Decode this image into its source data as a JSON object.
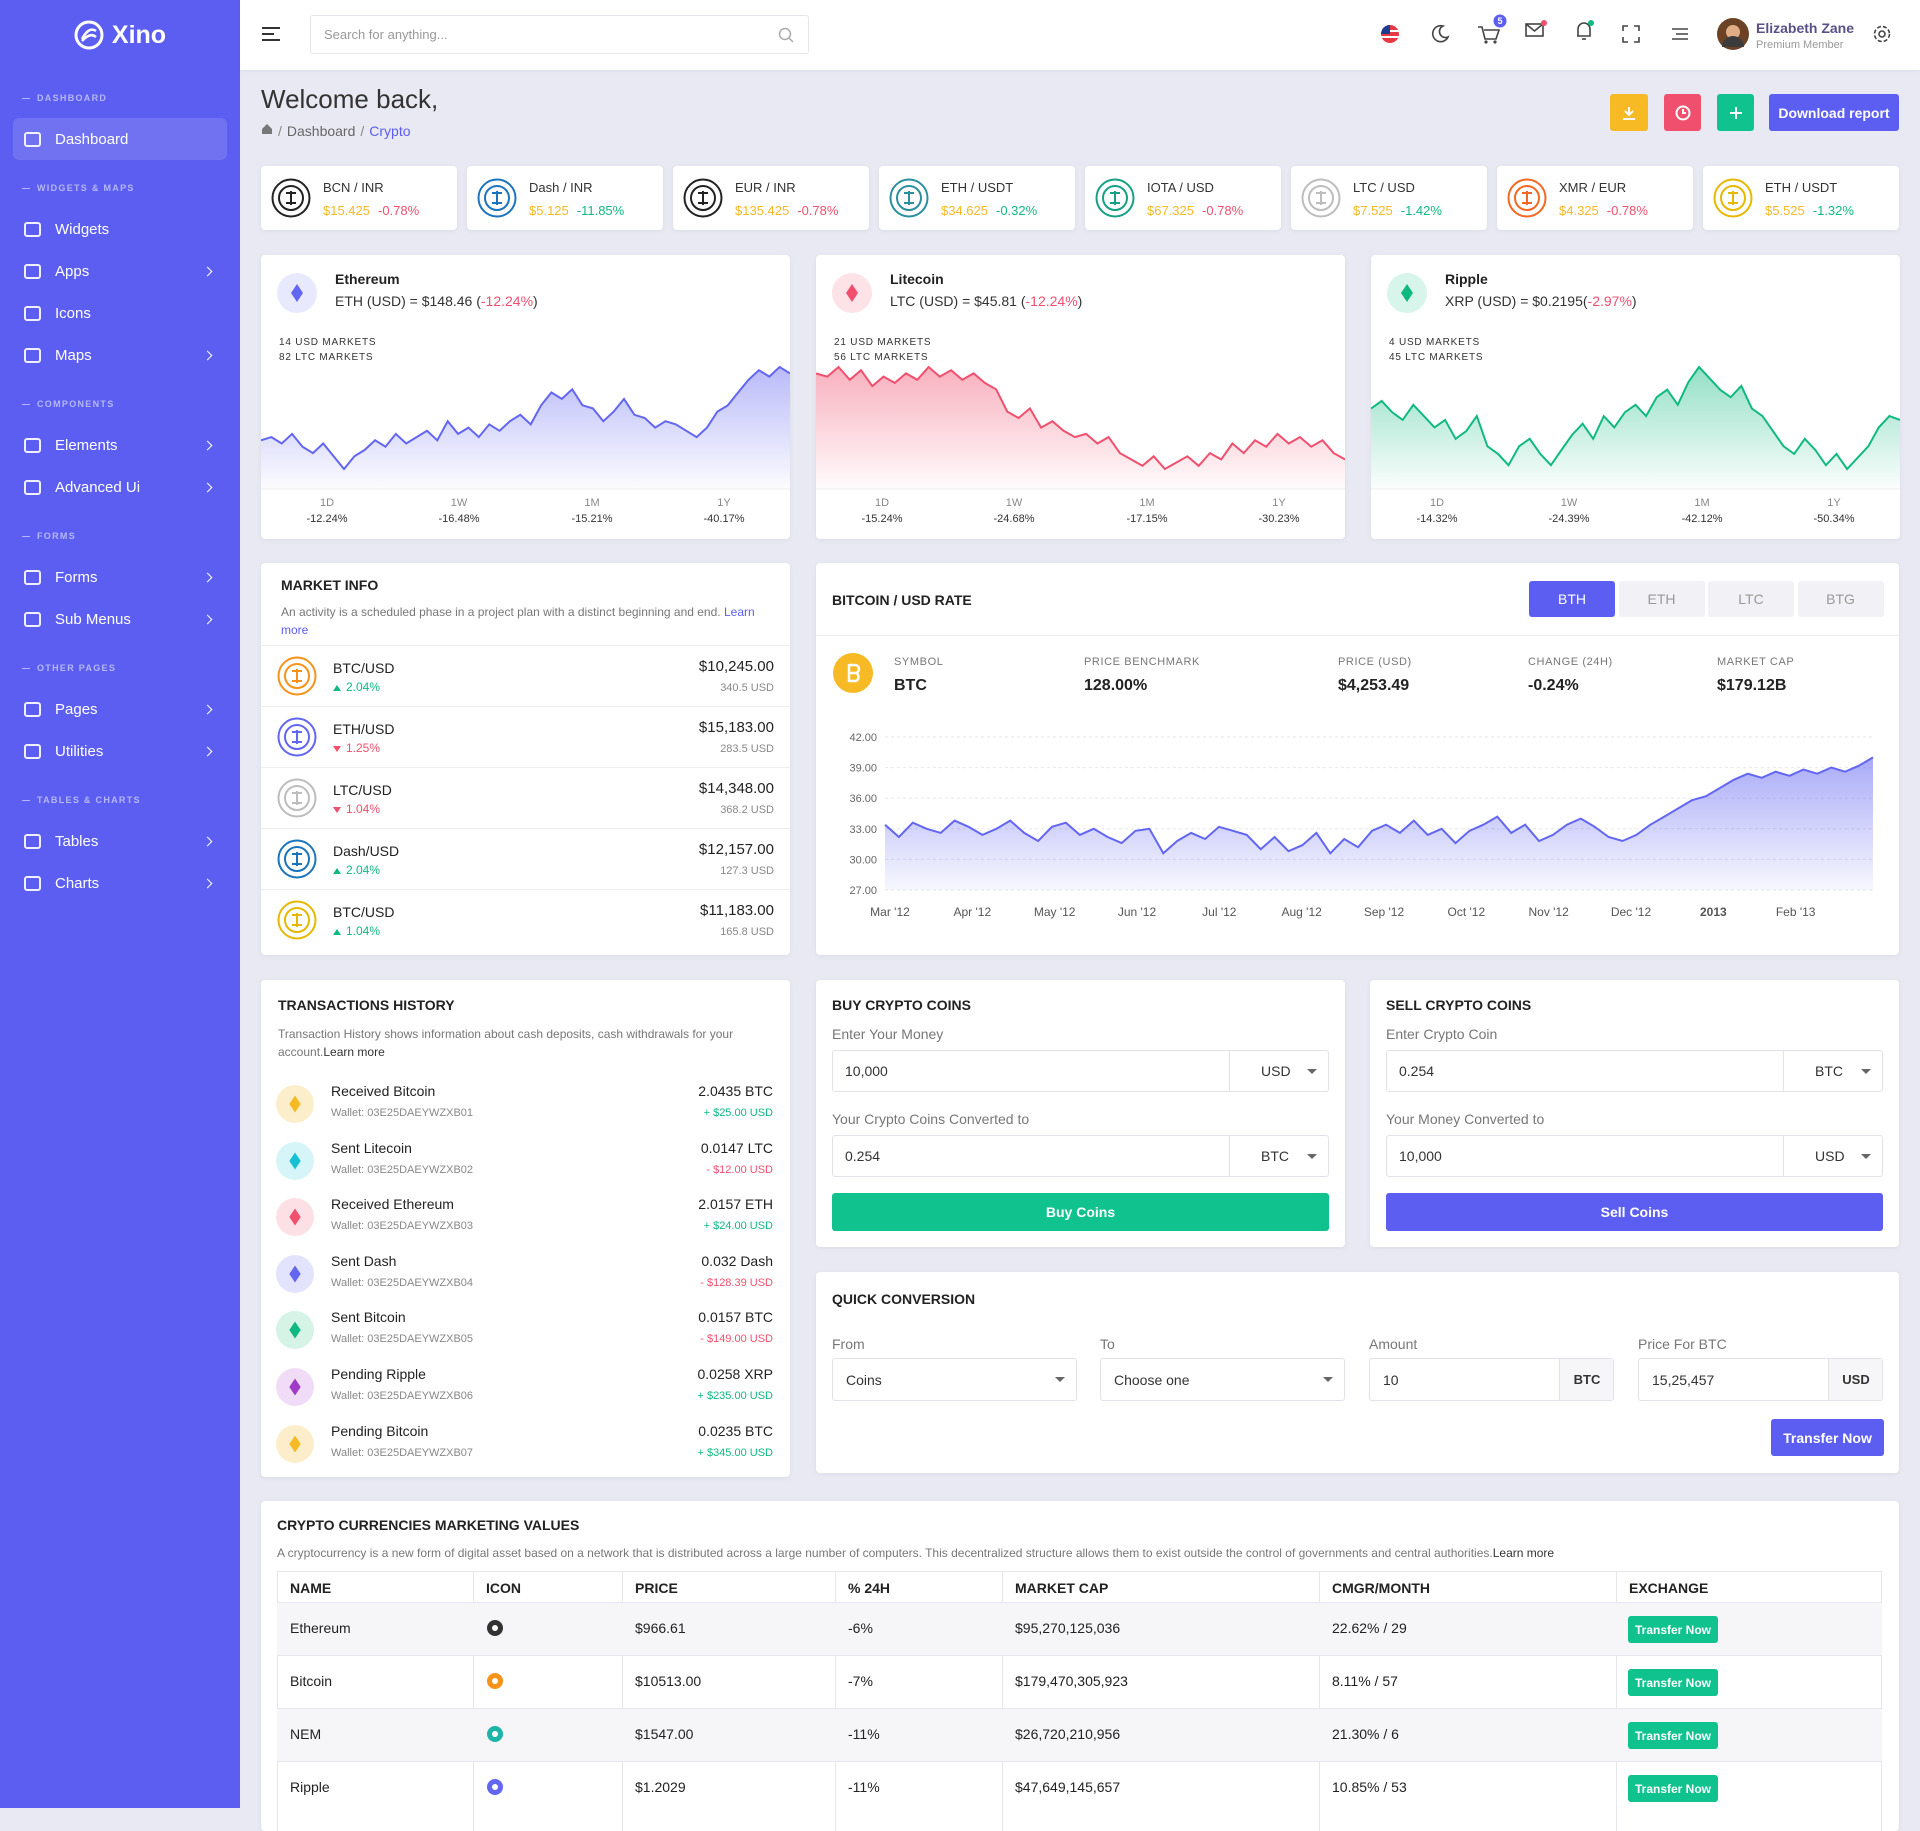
{
  "brand": "Xino",
  "search_placeholder": "Search for anything...",
  "cart_count": 5,
  "user": {
    "name": "Elizabeth Zane",
    "role": "Premium Member"
  },
  "sidebar": [
    {
      "heading": "DASHBOARD",
      "items": [
        {
          "label": "Dashboard",
          "active": true
        }
      ]
    },
    {
      "heading": "WIDGETS & MAPS",
      "items": [
        {
          "label": "Widgets"
        },
        {
          "label": "Apps",
          "submenu": true
        },
        {
          "label": "Icons"
        },
        {
          "label": "Maps",
          "submenu": true
        }
      ]
    },
    {
      "heading": "COMPONENTS",
      "items": [
        {
          "label": "Elements",
          "submenu": true
        },
        {
          "label": "Advanced Ui",
          "submenu": true
        }
      ]
    },
    {
      "heading": "FORMS",
      "items": [
        {
          "label": "Forms",
          "submenu": true
        },
        {
          "label": "Sub Menus",
          "submenu": true
        }
      ]
    },
    {
      "heading": "OTHER PAGES",
      "items": [
        {
          "label": "Pages",
          "submenu": true
        },
        {
          "label": "Utilities",
          "submenu": true
        }
      ]
    },
    {
      "heading": "TABLES & CHARTS",
      "items": [
        {
          "label": "Tables",
          "submenu": true
        },
        {
          "label": "Charts",
          "submenu": true
        }
      ]
    }
  ],
  "page": {
    "title": "Welcome back,",
    "breadcrumb": [
      "Dashboard",
      "Crypto"
    ],
    "download_button": "Download report"
  },
  "tickers": [
    {
      "pair": "BCN / INR",
      "price": "$15.425",
      "change": "-0.78%",
      "change_color": "#f0506e",
      "icon_color": "#222222"
    },
    {
      "pair": "Dash / INR",
      "price": "$5.125",
      "change": "-11.85%",
      "change_color": "#10b981",
      "icon_color": "#1c75bc"
    },
    {
      "pair": "EUR / INR",
      "price": "$135.425",
      "change": "-0.78%",
      "change_color": "#f0506e",
      "icon_color": "#222222"
    },
    {
      "pair": "ETH / USDT",
      "price": "$34.625",
      "change": "-0.32%",
      "change_color": "#10b981",
      "icon_color": "#2b8fa0"
    },
    {
      "pair": "IOTA / USD",
      "price": "$67.325",
      "change": "-0.78%",
      "change_color": "#f0506e",
      "icon_color": "#16a085"
    },
    {
      "pair": "LTC / USD",
      "price": "$7.525",
      "change": "-1.42%",
      "change_color": "#10b981",
      "icon_color": "#bdbdbd"
    },
    {
      "pair": "XMR / EUR",
      "price": "$4.325",
      "change": "-0.78%",
      "change_color": "#f0506e",
      "icon_color": "#f26822"
    },
    {
      "pair": "ETH / USDT",
      "price": "$5.525",
      "change": "-1.32%",
      "change_color": "#10b981",
      "icon_color": "#e6b800"
    }
  ],
  "coins": [
    {
      "name": "Ethereum",
      "quote": "ETH (USD) = $148.46 (",
      "change": "-12.24%",
      "close": ")",
      "color": "#6366f1",
      "bg": "#e9e9fd",
      "markets": [
        "14 USD MARKETS",
        "82 LTC MARKETS"
      ],
      "stats": [
        {
          "period": "1D",
          "value": "-12.24%"
        },
        {
          "period": "1W",
          "value": "-16.48%"
        },
        {
          "period": "1M",
          "value": "-15.21%"
        },
        {
          "period": "1Y",
          "value": "-40.17%"
        }
      ],
      "values": [
        40,
        42,
        38,
        44,
        36,
        32,
        38,
        30,
        22,
        30,
        34,
        40,
        36,
        44,
        38,
        42,
        46,
        40,
        52,
        44,
        48,
        42,
        50,
        46,
        52,
        56,
        50,
        62,
        70,
        66,
        72,
        62,
        60,
        52,
        58,
        66,
        56,
        54,
        48,
        52,
        50,
        46,
        42,
        48,
        58,
        62,
        70,
        78,
        84,
        80,
        86,
        82
      ]
    },
    {
      "name": "Litecoin",
      "quote": "LTC (USD) = $45.81 (",
      "change": "-12.24%",
      "close": ")",
      "color": "#f0506e",
      "bg": "#fde3e7",
      "markets": [
        "21 USD MARKETS",
        "56 LTC MARKETS"
      ],
      "stats": [
        {
          "period": "1D",
          "value": "-15.24%"
        },
        {
          "period": "1W",
          "value": "-24.68%"
        },
        {
          "period": "1M",
          "value": "-17.15%"
        },
        {
          "period": "1Y",
          "value": "-30.23%"
        }
      ],
      "values": [
        80,
        78,
        84,
        76,
        82,
        72,
        78,
        74,
        80,
        76,
        84,
        78,
        82,
        76,
        80,
        74,
        70,
        56,
        52,
        58,
        46,
        50,
        44,
        40,
        42,
        36,
        40,
        30,
        26,
        22,
        28,
        20,
        24,
        28,
        22,
        30,
        26,
        36,
        30,
        38,
        34,
        42,
        36,
        40,
        34,
        38,
        30,
        26
      ]
    },
    {
      "name": "Ripple",
      "quote": "XRP (USD) = $0.2195(",
      "change": "-2.97%",
      "close": ")",
      "color": "#10b981",
      "bg": "#d7f5ea",
      "markets": [
        "4 USD MARKETS",
        "45 LTC MARKETS"
      ],
      "stats": [
        {
          "period": "1D",
          "value": "-14.32%"
        },
        {
          "period": "1W",
          "value": "-24.39%"
        },
        {
          "period": "1M",
          "value": "-42.12%"
        },
        {
          "period": "1Y",
          "value": "-50.34%"
        }
      ],
      "values": [
        60,
        64,
        58,
        54,
        62,
        56,
        50,
        54,
        44,
        48,
        56,
        40,
        36,
        30,
        40,
        44,
        36,
        30,
        38,
        46,
        52,
        44,
        56,
        50,
        58,
        62,
        56,
        66,
        70,
        62,
        74,
        82,
        76,
        70,
        66,
        72,
        60,
        56,
        48,
        40,
        36,
        44,
        38,
        30,
        36,
        28,
        34,
        40,
        50,
        56,
        54
      ]
    }
  ],
  "market_info": {
    "title": "MARKET INFO",
    "description": "An activity is a scheduled phase in a project plan with a distinct beginning and end.",
    "link": "Learn more",
    "rows": [
      {
        "pair": "BTC/USD",
        "change": "2.04%",
        "trend": "up",
        "price": "$10,245.00",
        "volume": "340.5 USD",
        "icon_color": "#f7931a"
      },
      {
        "pair": "ETH/USD",
        "change": "1.25%",
        "trend": "down",
        "price": "$15,183.00",
        "volume": "283.5 USD",
        "icon_color": "#6366f1"
      },
      {
        "pair": "LTC/USD",
        "change": "1.04%",
        "trend": "down",
        "price": "$14,348.00",
        "volume": "368.2 USD",
        "icon_color": "#bdbdbd"
      },
      {
        "pair": "Dash/USD",
        "change": "2.04%",
        "trend": "up",
        "price": "$12,157.00",
        "volume": "127.3 USD",
        "icon_color": "#1c75bc"
      },
      {
        "pair": "BTC/USD",
        "change": "1.04%",
        "trend": "up",
        "price": "$11,183.00",
        "volume": "165.8 USD",
        "icon_color": "#e6b800"
      }
    ]
  },
  "bitcoin": {
    "title": "BITCOIN / USD RATE",
    "tabs": [
      "BTH",
      "ETH",
      "LTC",
      "BTG"
    ],
    "stats": [
      {
        "label": "SYMBOL",
        "value": "BTC"
      },
      {
        "label": "PRICE BENCHMARK",
        "value": "128.00%"
      },
      {
        "label": "PRICE (USD)",
        "value": "$4,253.49"
      },
      {
        "label": "CHANGE (24H)",
        "value": "-0.24%"
      },
      {
        "label": "MARKET CAP",
        "value": "$179.12B"
      }
    ]
  },
  "chart_data": {
    "type": "area",
    "color": "#6366f1",
    "grid": true,
    "ylim": [
      27,
      42
    ],
    "yticks": [
      {
        "value": 27,
        "label": "27.00"
      },
      {
        "value": 30,
        "label": "30.00"
      },
      {
        "value": 33,
        "label": "33.00"
      },
      {
        "value": 36,
        "label": "36.00"
      },
      {
        "value": 39,
        "label": "39.00"
      },
      {
        "value": 42,
        "label": "42.00"
      }
    ],
    "xtick_labels": [
      "Mar '12",
      "Apr '12",
      "May '12",
      "Jun '12",
      "Jul '12",
      "Aug '12",
      "Sep '12",
      "Oct '12",
      "Nov '12",
      "Dec '12",
      "2013",
      "Feb '13"
    ],
    "values": [
      33.4,
      32.2,
      33.6,
      33.0,
      32.6,
      33.8,
      33.2,
      32.4,
      33.0,
      33.8,
      32.6,
      31.8,
      33.2,
      33.6,
      32.4,
      33.0,
      32.2,
      31.6,
      32.8,
      33.0,
      30.6,
      31.8,
      32.6,
      32.0,
      33.2,
      32.8,
      32.4,
      31.0,
      32.2,
      30.8,
      31.4,
      32.6,
      30.6,
      32.0,
      31.2,
      32.8,
      33.4,
      32.6,
      33.8,
      32.4,
      33.0,
      31.6,
      32.8,
      33.4,
      34.2,
      32.6,
      33.4,
      31.8,
      32.4,
      33.4,
      34.0,
      33.2,
      32.2,
      31.8,
      32.4,
      33.4,
      34.2,
      35.0,
      35.8,
      36.2,
      37.0,
      37.8,
      38.4,
      38.0,
      38.6,
      38.2,
      38.8,
      38.4,
      39.0,
      38.6,
      39.2,
      40.0
    ]
  },
  "transactions": {
    "title": "TRANSACTIONS HISTORY",
    "description": "Transaction History shows information about cash deposits, cash withdrawals for your account.",
    "link": "Learn more",
    "rows": [
      {
        "title": "Received Bitcoin",
        "wallet": "Wallet: 03E25DAEYWZXB01",
        "amount": "2.0435 BTC",
        "usd": "+ $25.00 USD",
        "icon_color": "#f7b924",
        "icon_bg": "#fdeecb"
      },
      {
        "title": "Sent Litecoin",
        "wallet": "Wallet: 03E25DAEYWZXB02",
        "amount": "0.0147 LTC",
        "usd": "- $12.00 USD",
        "icon_color": "#17c1d4",
        "icon_bg": "#d5f5f8"
      },
      {
        "title": "Received Ethereum",
        "wallet": "Wallet: 03E25DAEYWZXB03",
        "amount": "2.0157 ETH",
        "usd": "+ $24.00 USD",
        "icon_color": "#f0506e",
        "icon_bg": "#fde0e5"
      },
      {
        "title": "Sent Dash",
        "wallet": "Wallet: 03E25DAEYWZXB04",
        "amount": "0.032 Dash",
        "usd": "- $128.39 USD",
        "icon_color": "#6366f1",
        "icon_bg": "#e3e3fd"
      },
      {
        "title": "Sent Bitcoin",
        "wallet": "Wallet: 03E25DAEYWZXB05",
        "amount": "0.0157 BTC",
        "usd": "- $149.00 USD",
        "icon_color": "#10b981",
        "icon_bg": "#d5f3e7"
      },
      {
        "title": "Pending Ripple",
        "wallet": "Wallet: 03E25DAEYWZXB06",
        "amount": "0.0258 XRP",
        "usd": "+ $235.00 USD",
        "icon_color": "#a03bc7",
        "icon_bg": "#f1dcf8"
      },
      {
        "title": "Pending Bitcoin",
        "wallet": "Wallet: 03E25DAEYWZXB07",
        "amount": "0.0235 BTC",
        "usd": "+ $345.00 USD",
        "icon_color": "#f7b924",
        "icon_bg": "#fdeecb"
      }
    ]
  },
  "buy": {
    "title": "BUY CRYPTO COINS",
    "fields": [
      {
        "label": "Enter Your Money",
        "value": "10,000",
        "unit": "USD"
      },
      {
        "label": "Your Crypto Coins Converted to",
        "value": "0.254",
        "unit": "BTC"
      }
    ],
    "button": "Buy Coins",
    "button_color": "#10c28e"
  },
  "sell": {
    "title": "SELL CRYPTO COINS",
    "fields": [
      {
        "label": "Enter Crypto Coin",
        "value": "0.254",
        "unit": "BTC"
      },
      {
        "label": "Your Money Converted to",
        "value": "10,000",
        "unit": "USD"
      }
    ],
    "button": "Sell Coins",
    "button_color": "#5b5ef0"
  },
  "quick": {
    "title": "QUICK CONVERSION",
    "fields": [
      {
        "label": "From",
        "value": "Coins",
        "select": true
      },
      {
        "label": "To",
        "value": "Choose one",
        "select": true
      },
      {
        "label": "Amount",
        "value": "10",
        "addon": "BTC"
      },
      {
        "label": "Price For BTC",
        "value": "15,25,457",
        "addon": "USD"
      }
    ],
    "button": "Transfer Now"
  },
  "table": {
    "title": "CRYPTO CURRENCIES MARKETING VALUES",
    "description": "A cryptocurrency is a new form of digital asset based on a network that is distributed across a large number of computers. This decentralized structure allows them to exist outside the control of governments and central authorities.",
    "link": "Learn more",
    "columns": [
      "NAME",
      "ICON",
      "PRICE",
      "% 24H",
      "MARKET CAP",
      "CMGR/MONTH",
      "EXCHANGE"
    ],
    "rows": [
      {
        "name": "Ethereum",
        "icon_color": "#333333",
        "price": "$966.61",
        "change": "-6%",
        "cap": "$95,270,125,036",
        "cmgr": "22.62% / 29",
        "action": "Transfer Now"
      },
      {
        "name": "Bitcoin",
        "icon_color": "#f7931a",
        "price": "$10513.00",
        "change": "-7%",
        "cap": "$179,470,305,923",
        "cmgr": "8.11% / 57",
        "action": "Transfer Now"
      },
      {
        "name": "NEM",
        "icon_color": "#1db5a8",
        "price": "$1547.00",
        "change": "-11%",
        "cap": "$26,720,210,956",
        "cmgr": "21.30% / 6",
        "action": "Transfer Now"
      },
      {
        "name": "Ripple",
        "icon_color": "#6366f1",
        "price": "$1.2029",
        "change": "-11%",
        "cap": "$47,649,145,657",
        "cmgr": "10.85% / 53",
        "action": "Transfer Now"
      }
    ]
  }
}
